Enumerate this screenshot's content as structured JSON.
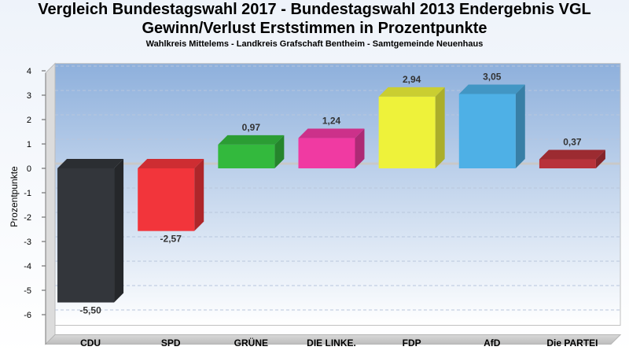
{
  "chart_data": {
    "type": "bar",
    "title_line1": "Vergleich Bundestagswahl 2017 - Bundestagswahl 2013 Endergebnis VGL",
    "title_line2": "Gewinn/Verlust Erststimmen in Prozentpunkte",
    "subtitle": "Wahlkreis Mittelems - Landkreis Grafschaft Bentheim - Samtgemeinde Neuenhaus",
    "ylabel": "Prozentpunkte",
    "xlabel": "",
    "ylim": [
      -6.5,
      4.3
    ],
    "yticks": [
      4,
      3,
      2,
      1,
      0,
      -1,
      -2,
      -3,
      -4,
      -5,
      -6
    ],
    "categories": [
      "CDU",
      "SPD",
      "GRÜNE",
      "DIE LINKE.",
      "FDP",
      "AfD",
      "Die PARTEI"
    ],
    "values": [
      -5.5,
      -2.57,
      0.97,
      1.24,
      2.94,
      3.05,
      0.37
    ],
    "value_labels": [
      "-5,50",
      "-2,57",
      "0,97",
      "1,24",
      "2,94",
      "3,05",
      "0,37"
    ],
    "colors": [
      "#33363b",
      "#f2353b",
      "#33b93d",
      "#f03aa2",
      "#eef23a",
      "#4eb0e6",
      "#b8323a"
    ],
    "grid": true,
    "legend": "none"
  }
}
